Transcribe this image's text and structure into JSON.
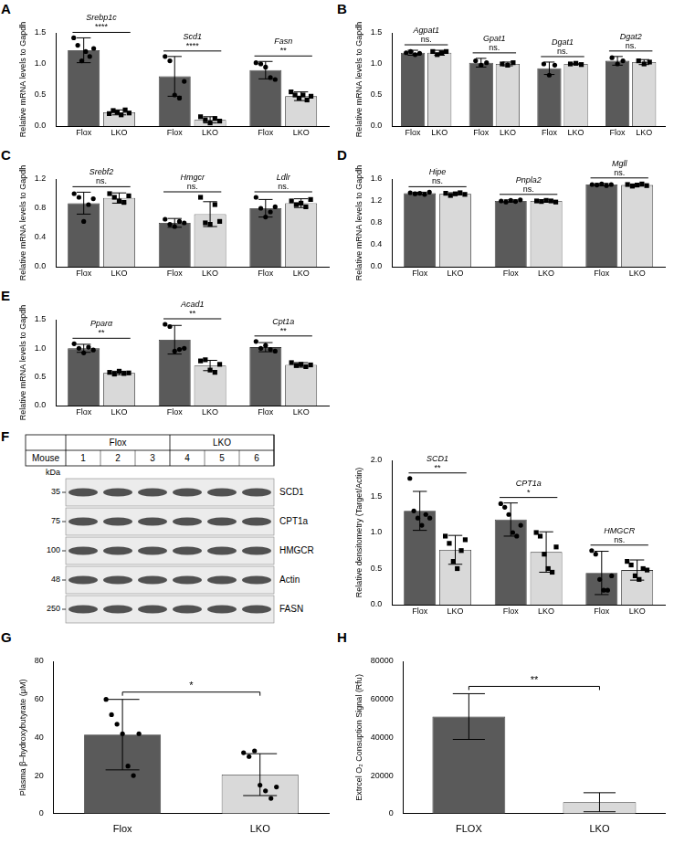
{
  "chart_data": [
    {
      "panel": "A",
      "type": "bar",
      "ylabel": "Relative mRNA levels to Gapdh",
      "grid": false,
      "ylim": [
        0,
        1.5
      ],
      "yticks": [
        {
          "value": 0,
          "label": "0.0"
        },
        0.5,
        {
          "value": 1,
          "label": "1.0"
        },
        1.5
      ],
      "categories": [
        "Srebp1c",
        "Scd1",
        "Fasn"
      ],
      "significance": [
        "****",
        "****",
        "**"
      ],
      "series": [
        {
          "name": "Flox",
          "color": "#5a5a5a",
          "marker": "circle",
          "values": [
            1.22,
            0.8,
            0.9
          ],
          "errors": [
            0.2,
            0.32,
            0.14
          ],
          "points": [
            [
              1.42,
              1.3,
              1.05,
              1.2,
              1.12,
              1.25
            ],
            [
              1.12,
              1.05,
              0.5,
              0.45,
              0.72
            ],
            [
              1.02,
              1.0,
              0.95,
              0.78,
              0.75
            ]
          ]
        },
        {
          "name": "LKO",
          "color": "#d9d9d9",
          "marker": "square",
          "values": [
            0.22,
            0.1,
            0.48
          ],
          "errors": [
            0.04,
            0.05,
            0.07
          ],
          "points": [
            [
              0.2,
              0.25,
              0.22,
              0.18,
              0.26,
              0.21
            ],
            [
              0.15,
              0.1,
              0.05,
              0.12,
              0.08
            ],
            [
              0.55,
              0.5,
              0.45,
              0.5,
              0.42,
              0.48
            ]
          ]
        }
      ]
    },
    {
      "panel": "B",
      "type": "bar",
      "ylabel": "Relative mRNA levels to Gapdh",
      "grid": false,
      "ylim": [
        0,
        1.5
      ],
      "yticks": [
        {
          "value": 0,
          "label": "0.0"
        },
        0.5,
        {
          "value": 1,
          "label": "1.0"
        },
        1.5
      ],
      "categories": [
        "Agpat1",
        "Gpat1",
        "Dgat1",
        "Dgat2"
      ],
      "significance": [
        "ns.",
        "ns.",
        "ns.",
        "ns."
      ],
      "series": [
        {
          "name": "Flox",
          "color": "#5a5a5a",
          "marker": "circle",
          "values": [
            1.18,
            1.02,
            0.93,
            1.05
          ],
          "errors": [
            0.04,
            0.07,
            0.1,
            0.07
          ],
          "points": [
            [
              1.18,
              1.2,
              1.15,
              1.17
            ],
            [
              1.05,
              0.98,
              1.02
            ],
            [
              1.0,
              0.82,
              0.98
            ],
            [
              1.1,
              1.0,
              1.05
            ]
          ]
        },
        {
          "name": "LKO",
          "color": "#d9d9d9",
          "marker": "square",
          "values": [
            1.18,
            1.0,
            1.0,
            1.03
          ],
          "errors": [
            0.04,
            0.03,
            0.01,
            0.04
          ],
          "points": [
            [
              1.2,
              1.15,
              1.18,
              1.2
            ],
            [
              1.0,
              0.98,
              1.02
            ],
            [
              1.0,
              1.01,
              0.99
            ],
            [
              1.05,
              1.0,
              1.03
            ]
          ]
        }
      ]
    },
    {
      "panel": "C",
      "type": "bar",
      "ylabel": "Relative mRNA levels to Gapdh",
      "grid": false,
      "ylim": [
        0,
        1.2
      ],
      "yticks": [
        {
          "value": 0,
          "label": "0.0"
        },
        0.4,
        0.8,
        1.2
      ],
      "categories": [
        "Srebf2",
        "Hmgcr",
        "Ldlr"
      ],
      "significance": [
        "ns.",
        "ns.",
        "ns."
      ],
      "series": [
        {
          "name": "Flox",
          "color": "#5a5a5a",
          "marker": "circle",
          "values": [
            0.87,
            0.6,
            0.8
          ],
          "errors": [
            0.15,
            0.06,
            0.12
          ],
          "points": [
            [
              1.0,
              0.95,
              0.62,
              0.85,
              0.93
            ],
            [
              0.65,
              0.58,
              0.55,
              0.62,
              0.6
            ],
            [
              0.95,
              0.8,
              0.68,
              0.75,
              0.82
            ]
          ]
        },
        {
          "name": "LKO",
          "color": "#d9d9d9",
          "marker": "square",
          "values": [
            0.94,
            0.72,
            0.87
          ],
          "errors": [
            0.07,
            0.17,
            0.06
          ],
          "points": [
            [
              1.0,
              0.95,
              0.9,
              0.88,
              0.97
            ],
            [
              0.95,
              0.6,
              0.58,
              0.85,
              0.62
            ],
            [
              0.9,
              0.85,
              0.87,
              0.82,
              0.92
            ]
          ]
        }
      ]
    },
    {
      "panel": "D",
      "type": "bar",
      "ylabel": "Relative mRNA levels to Gapdh",
      "grid": false,
      "ylim": [
        0,
        1.6
      ],
      "yticks": [
        {
          "value": 0,
          "label": "0.0"
        },
        0.4,
        0.8,
        1.2,
        1.6
      ],
      "categories": [
        "Hipe",
        "Pnpla2",
        "Mgll"
      ],
      "significance": [
        "ns.",
        "ns.",
        "ns."
      ],
      "series": [
        {
          "name": "Flox",
          "color": "#5a5a5a",
          "marker": "circle",
          "values": [
            1.34,
            1.2,
            1.5
          ],
          "errors": [
            0.02,
            0.02,
            0.02
          ],
          "points": [
            [
              1.35,
              1.33,
              1.34,
              1.32,
              1.36
            ],
            [
              1.2,
              1.18,
              1.21,
              1.19,
              1.22
            ],
            [
              1.5,
              1.49,
              1.51,
              1.48,
              1.5
            ]
          ]
        },
        {
          "name": "LKO",
          "color": "#d9d9d9",
          "marker": "square",
          "values": [
            1.33,
            1.2,
            1.49
          ],
          "errors": [
            0.02,
            0.02,
            0.02
          ],
          "points": [
            [
              1.34,
              1.3,
              1.33,
              1.35,
              1.32
            ],
            [
              1.2,
              1.19,
              1.21,
              1.2,
              1.18
            ],
            [
              1.5,
              1.47,
              1.49,
              1.51,
              1.48
            ]
          ]
        }
      ]
    },
    {
      "panel": "E",
      "type": "bar",
      "ylabel": "Relative mRNA levels to Gapdh",
      "grid": false,
      "ylim": [
        0,
        1.5
      ],
      "yticks": [
        {
          "value": 0,
          "label": "0.0"
        },
        0.5,
        {
          "value": 1,
          "label": "1.0"
        },
        1.5
      ],
      "categories": [
        "Pparα",
        "Acad1",
        "Cpt1a"
      ],
      "significance": [
        "**",
        "**",
        "**"
      ],
      "series": [
        {
          "name": "Flox",
          "color": "#5a5a5a",
          "marker": "circle",
          "values": [
            1.0,
            1.15,
            1.02
          ],
          "errors": [
            0.07,
            0.25,
            0.08
          ],
          "points": [
            [
              1.08,
              1.0,
              0.92,
              1.02,
              0.97
            ],
            [
              1.42,
              1.38,
              0.95,
              0.98,
              1.0
            ],
            [
              1.12,
              1.0,
              1.05,
              0.98,
              0.95
            ]
          ]
        },
        {
          "name": "LKO",
          "color": "#d9d9d9",
          "marker": "square",
          "values": [
            0.57,
            0.7,
            0.71
          ],
          "errors": [
            0.03,
            0.09,
            0.04
          ],
          "points": [
            [
              0.58,
              0.55,
              0.6,
              0.56,
              0.57
            ],
            [
              0.78,
              0.8,
              0.62,
              0.58,
              0.72
            ],
            [
              0.75,
              0.7,
              0.72,
              0.68,
              0.71
            ]
          ]
        }
      ]
    },
    {
      "type": "bar",
      "ylabel": "Relative densitometry (Target/Actin)",
      "grid": false,
      "ylim": [
        0,
        2
      ],
      "yticks": [
        {
          "value": 0,
          "label": "0.0"
        },
        0.5,
        {
          "value": 1,
          "label": "1.0"
        },
        1.5,
        {
          "value": 2,
          "label": "2.0"
        }
      ],
      "categories": [
        "SCD1",
        "CPT1a",
        "HMGCR"
      ],
      "significance": [
        "**",
        "*",
        "ns."
      ],
      "series": [
        {
          "name": "Flox",
          "color": "#5a5a5a",
          "marker": "circle",
          "values": [
            1.3,
            1.18,
            0.44
          ],
          "errors": [
            0.27,
            0.23,
            0.3
          ],
          "points": [
            [
              1.75,
              1.3,
              1.2,
              1.1,
              1.25,
              1.2
            ],
            [
              1.4,
              1.35,
              1.25,
              1.0,
              0.95,
              1.1
            ],
            [
              0.75,
              0.7,
              0.35,
              0.2,
              0.2,
              0.4
            ]
          ]
        },
        {
          "name": "LKO",
          "color": "#d9d9d9",
          "marker": "square",
          "values": [
            0.76,
            0.73,
            0.48
          ],
          "errors": [
            0.2,
            0.28,
            0.14
          ],
          "points": [
            [
              0.95,
              0.85,
              0.6,
              0.5,
              0.75,
              0.9
            ],
            [
              1.0,
              0.95,
              0.7,
              0.5,
              0.45,
              0.8
            ],
            [
              0.6,
              0.55,
              0.4,
              0.35,
              0.5,
              0.48
            ]
          ]
        }
      ]
    },
    {
      "panel": "G",
      "type": "bar",
      "ylabel": "Plasma β–hydroxybutyrate (μM)",
      "grid": false,
      "ylim": [
        0,
        80
      ],
      "yticks": [
        0,
        20,
        40,
        60,
        80
      ],
      "categories": [
        "Flox",
        "LKO"
      ],
      "values": [
        41.5,
        20.5
      ],
      "errors": [
        18.5,
        11
      ],
      "colors": [
        "#5a5a5a",
        "#d9d9d9"
      ],
      "marker": "circle",
      "points": [
        [
          60,
          52,
          47,
          42,
          25,
          20,
          42
        ],
        [
          32,
          30,
          33,
          15,
          12,
          8,
          14
        ]
      ],
      "significance": "*"
    },
    {
      "panel": "H",
      "type": "bar",
      "ylabel": "Extrcel O₂ Consuption Signal (Rfu)",
      "grid": false,
      "ylim": [
        0,
        80000
      ],
      "yticks": [
        0,
        20000,
        40000,
        60000,
        80000
      ],
      "categories": [
        "FLOX",
        "LKO"
      ],
      "values": [
        51000,
        6000
      ],
      "errors": [
        12000,
        5000
      ],
      "colors": [
        "#5a5a5a",
        "#d9d9d9"
      ],
      "significance": "**"
    }
  ],
  "blot": {
    "panel": "F",
    "header": "Mouse",
    "unit": "kDa",
    "groups": [
      {
        "name": "Flox",
        "lanes": [
          "1",
          "2",
          "3"
        ]
      },
      {
        "name": "LKO",
        "lanes": [
          "4",
          "5",
          "6"
        ]
      }
    ],
    "rows": [
      {
        "label": "SCD1",
        "size_label": "35"
      },
      {
        "label": "CPT1a",
        "size_label": "75"
      },
      {
        "label": "HMGCR",
        "size_label": "100"
      },
      {
        "label": "Actin",
        "size_label": "48"
      },
      {
        "label": "FASN",
        "size_label": "250"
      }
    ]
  }
}
